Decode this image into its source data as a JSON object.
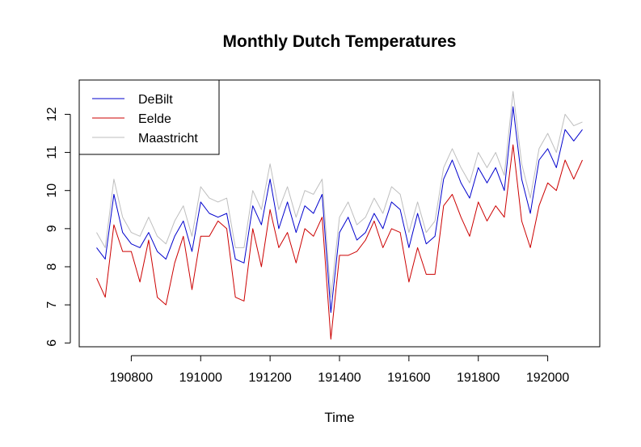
{
  "chart_data": {
    "type": "line",
    "title": "Monthly Dutch Temperatures",
    "xlabel": "Time",
    "ylabel": "",
    "xlim": [
      190650,
      192150
    ],
    "ylim": [
      5.9,
      12.9
    ],
    "xticks": [
      190800,
      191000,
      191200,
      191400,
      191600,
      191800,
      192000
    ],
    "xtick_labels": [
      "190800",
      "191000",
      "191200",
      "191400",
      "191600",
      "191800",
      "192000"
    ],
    "yticks": [
      6,
      7,
      8,
      9,
      10,
      11,
      12
    ],
    "ytick_labels": [
      "6",
      "7",
      "8",
      "9",
      "10",
      "11",
      "12"
    ],
    "grid": false,
    "legend_position": "top-left",
    "x": [
      190700,
      190725,
      190750,
      190775,
      190800,
      190825,
      190850,
      190875,
      190900,
      190925,
      190950,
      190975,
      191000,
      191025,
      191050,
      191075,
      191100,
      191125,
      191150,
      191175,
      191200,
      191225,
      191250,
      191275,
      191300,
      191325,
      191350,
      191375,
      191400,
      191425,
      191450,
      191475,
      191500,
      191525,
      191550,
      191575,
      191600,
      191625,
      191650,
      191675,
      191700,
      191725,
      191750,
      191775,
      191800,
      191825,
      191850,
      191875,
      191900,
      191925,
      191950,
      191975,
      192000,
      192025,
      192050,
      192075,
      192100
    ],
    "series": [
      {
        "name": "DeBilt",
        "color": "#0000CD",
        "values": [
          8.5,
          8.2,
          9.9,
          8.9,
          8.6,
          8.5,
          8.9,
          8.4,
          8.2,
          8.8,
          9.2,
          8.4,
          9.7,
          9.4,
          9.3,
          9.4,
          8.2,
          8.1,
          9.6,
          9.1,
          10.3,
          9.0,
          9.7,
          8.9,
          9.6,
          9.4,
          9.9,
          6.8,
          8.9,
          9.3,
          8.7,
          8.9,
          9.4,
          9.0,
          9.7,
          9.5,
          8.5,
          9.4,
          8.6,
          8.8,
          10.3,
          10.8,
          10.2,
          9.8,
          10.6,
          10.2,
          10.6,
          10.0,
          12.2,
          10.3,
          9.4,
          10.8,
          11.1,
          10.6,
          11.6,
          11.3,
          11.6
        ]
      },
      {
        "name": "Eelde",
        "color": "#CC0000",
        "values": [
          7.7,
          7.2,
          9.1,
          8.4,
          8.4,
          7.6,
          8.7,
          7.2,
          7.0,
          8.1,
          8.8,
          7.4,
          8.8,
          8.8,
          9.2,
          9.0,
          7.2,
          7.1,
          9.0,
          8.0,
          9.5,
          8.5,
          8.9,
          8.1,
          9.0,
          8.8,
          9.3,
          6.1,
          8.3,
          8.3,
          8.4,
          8.7,
          9.2,
          8.5,
          9.0,
          8.9,
          7.6,
          8.5,
          7.8,
          7.8,
          9.6,
          9.9,
          9.3,
          8.8,
          9.7,
          9.2,
          9.6,
          9.3,
          11.2,
          9.2,
          8.5,
          9.6,
          10.2,
          10.0,
          10.8,
          10.3,
          10.8
        ]
      },
      {
        "name": "Maastricht",
        "color": "#BEBEBE",
        "values": [
          8.9,
          8.5,
          10.3,
          9.3,
          8.9,
          8.8,
          9.3,
          8.8,
          8.6,
          9.2,
          9.6,
          8.8,
          10.1,
          9.8,
          9.7,
          9.8,
          8.5,
          8.5,
          10.0,
          9.5,
          10.7,
          9.5,
          10.1,
          9.3,
          10.0,
          9.9,
          10.3,
          7.2,
          9.3,
          9.7,
          9.1,
          9.3,
          9.8,
          9.4,
          10.1,
          9.9,
          8.9,
          9.7,
          8.9,
          9.2,
          10.6,
          11.1,
          10.6,
          10.2,
          11.0,
          10.6,
          11.0,
          10.4,
          12.6,
          10.7,
          9.8,
          11.1,
          11.5,
          11.0,
          12.0,
          11.7,
          11.8
        ]
      }
    ]
  }
}
